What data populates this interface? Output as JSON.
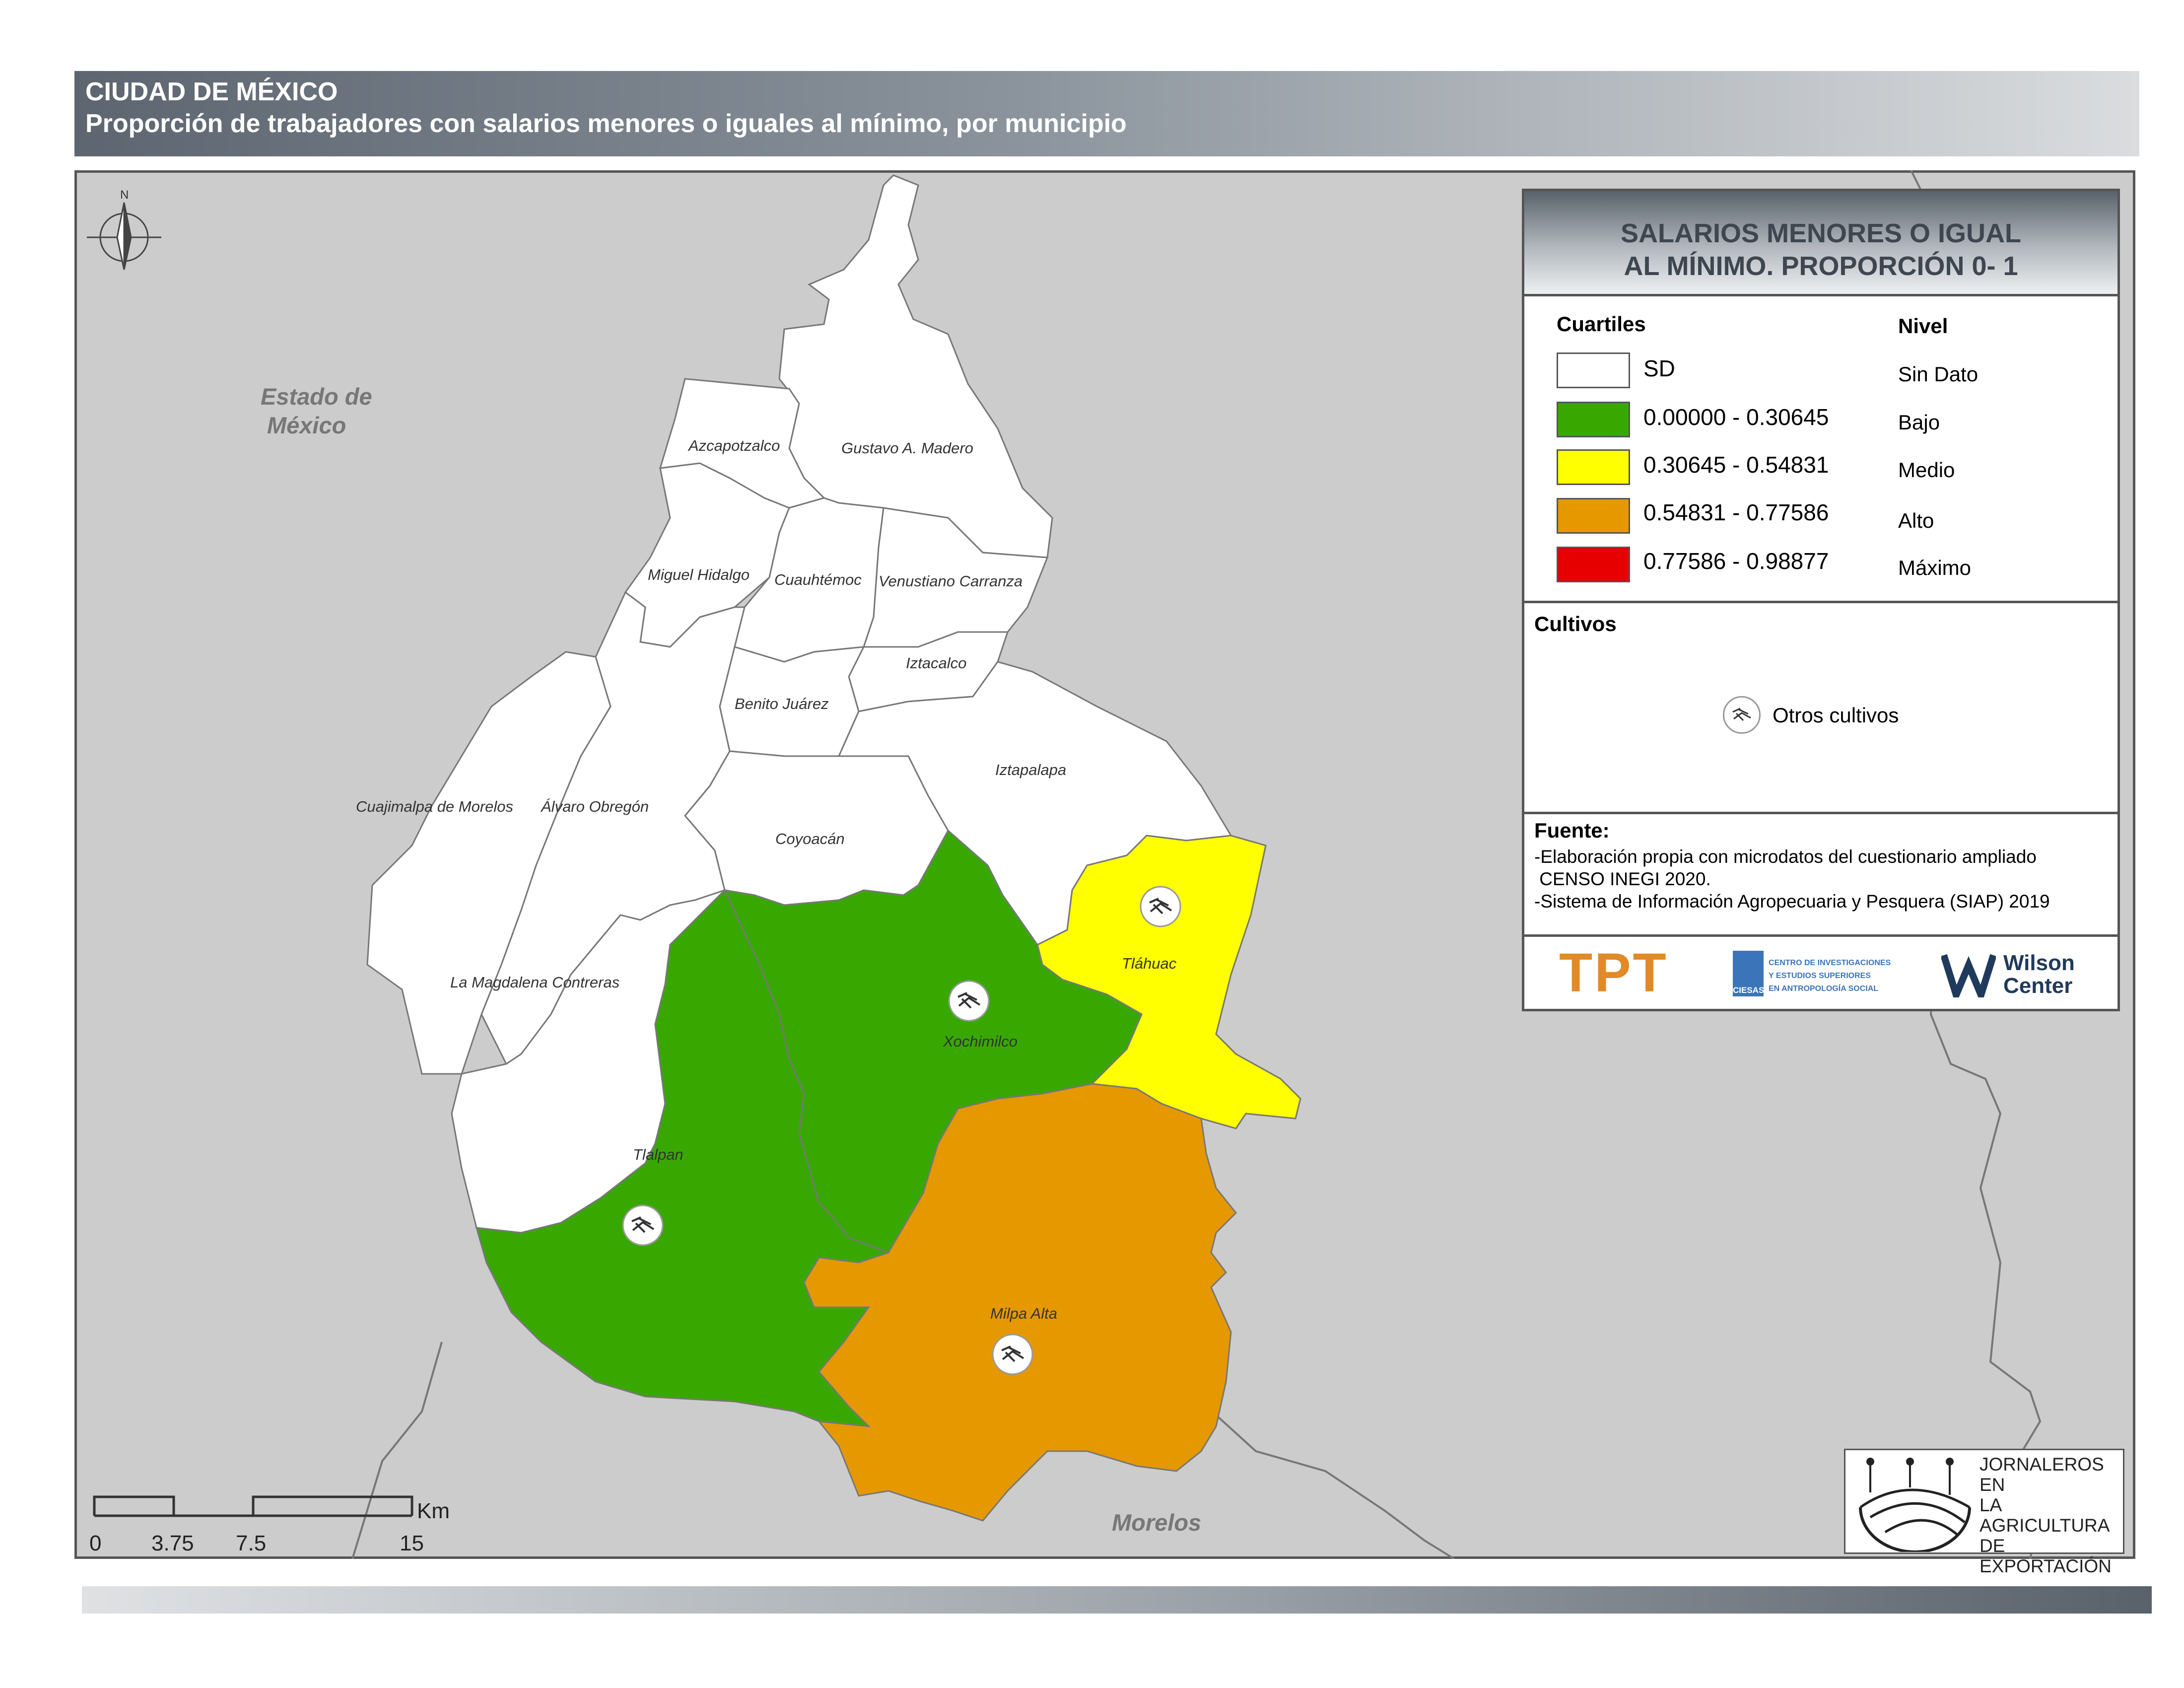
{
  "header": {
    "title": "CIUDAD DE MÉXICO",
    "subtitle": "Proporción de trabajadores con salarios menores o iguales al mínimo, por municipio"
  },
  "map": {
    "neighbors": {
      "estado_mexico_1": "Estado de",
      "estado_mexico_2": "México",
      "morelos": "Morelos"
    },
    "north_label": "N",
    "municipalities": [
      {
        "name": "Azcapotzalco",
        "level": "Sin Dato"
      },
      {
        "name": "Gustavo A. Madero",
        "level": "Sin Dato"
      },
      {
        "name": "Miguel Hidalgo",
        "level": "Sin Dato"
      },
      {
        "name": "Cuauhtémoc",
        "level": "Sin Dato"
      },
      {
        "name": "Venustiano Carranza",
        "level": "Sin Dato"
      },
      {
        "name": "Iztacalco",
        "level": "Sin Dato"
      },
      {
        "name": "Benito Juárez",
        "level": "Sin Dato"
      },
      {
        "name": "Iztapalapa",
        "level": "Sin Dato"
      },
      {
        "name": "Cuajimalpa de Morelos",
        "level": "Sin Dato"
      },
      {
        "name": "Álvaro Obregón",
        "level": "Sin Dato"
      },
      {
        "name": "Coyoacán",
        "level": "Sin Dato"
      },
      {
        "name": "La Magdalena Contreras",
        "level": "Sin Dato"
      },
      {
        "name": "Tláhuac",
        "level": "Medio"
      },
      {
        "name": "Xochimilco",
        "level": "Bajo"
      },
      {
        "name": "Tlalpan",
        "level": "Bajo"
      },
      {
        "name": "Milpa Alta",
        "level": "Alto"
      }
    ],
    "scale": {
      "unit": "Km",
      "ticks": [
        "0",
        "3.75",
        "7.5",
        "15"
      ]
    }
  },
  "legend": {
    "title_line1": "SALARIOS MENORES O IGUAL",
    "title_line2": "AL MÍNIMO. PROPORCIÓN 0- 1",
    "col_quartiles": "Cuartiles",
    "col_level": "Nivel",
    "items": [
      {
        "range": "SD",
        "level": "Sin Dato",
        "color": "#ffffff"
      },
      {
        "range": "0.00000 - 0.30645",
        "level": "Bajo",
        "color": "#38a800"
      },
      {
        "range": "0.30645 - 0.54831",
        "level": "Medio",
        "color": "#ffff00"
      },
      {
        "range": "0.54831 - 0.77586",
        "level": "Alto",
        "color": "#e69800"
      },
      {
        "range": "0.77586 - 0.98877",
        "level": "Máximo",
        "color": "#e60000"
      }
    ],
    "cultivos_title": "Cultivos",
    "cultivos_item": "Otros cultivos",
    "fuente_title": "Fuente:",
    "fuente_lines": [
      "-Elaboración propia con microdatos del cuestionario ampliado",
      " CENSO INEGI 2020.",
      "-Sistema de Información Agropecuaria y Pesquera (SIAP) 2019"
    ]
  },
  "logos": {
    "tpt": "TPT",
    "ciesas_1": "CENTRO DE INVESTIGACIONES",
    "ciesas_2": "Y ESTUDIOS SUPERIORES",
    "ciesas_3": "EN ANTROPOLOGÍA SOCIAL",
    "ciesas_name": "CIESAS",
    "wilson_1": "Wilson",
    "wilson_2": "Center",
    "jornaleros": [
      "JORNALEROS EN",
      "LA AGRICULTURA",
      "DE EXPORTACIÓN"
    ]
  }
}
